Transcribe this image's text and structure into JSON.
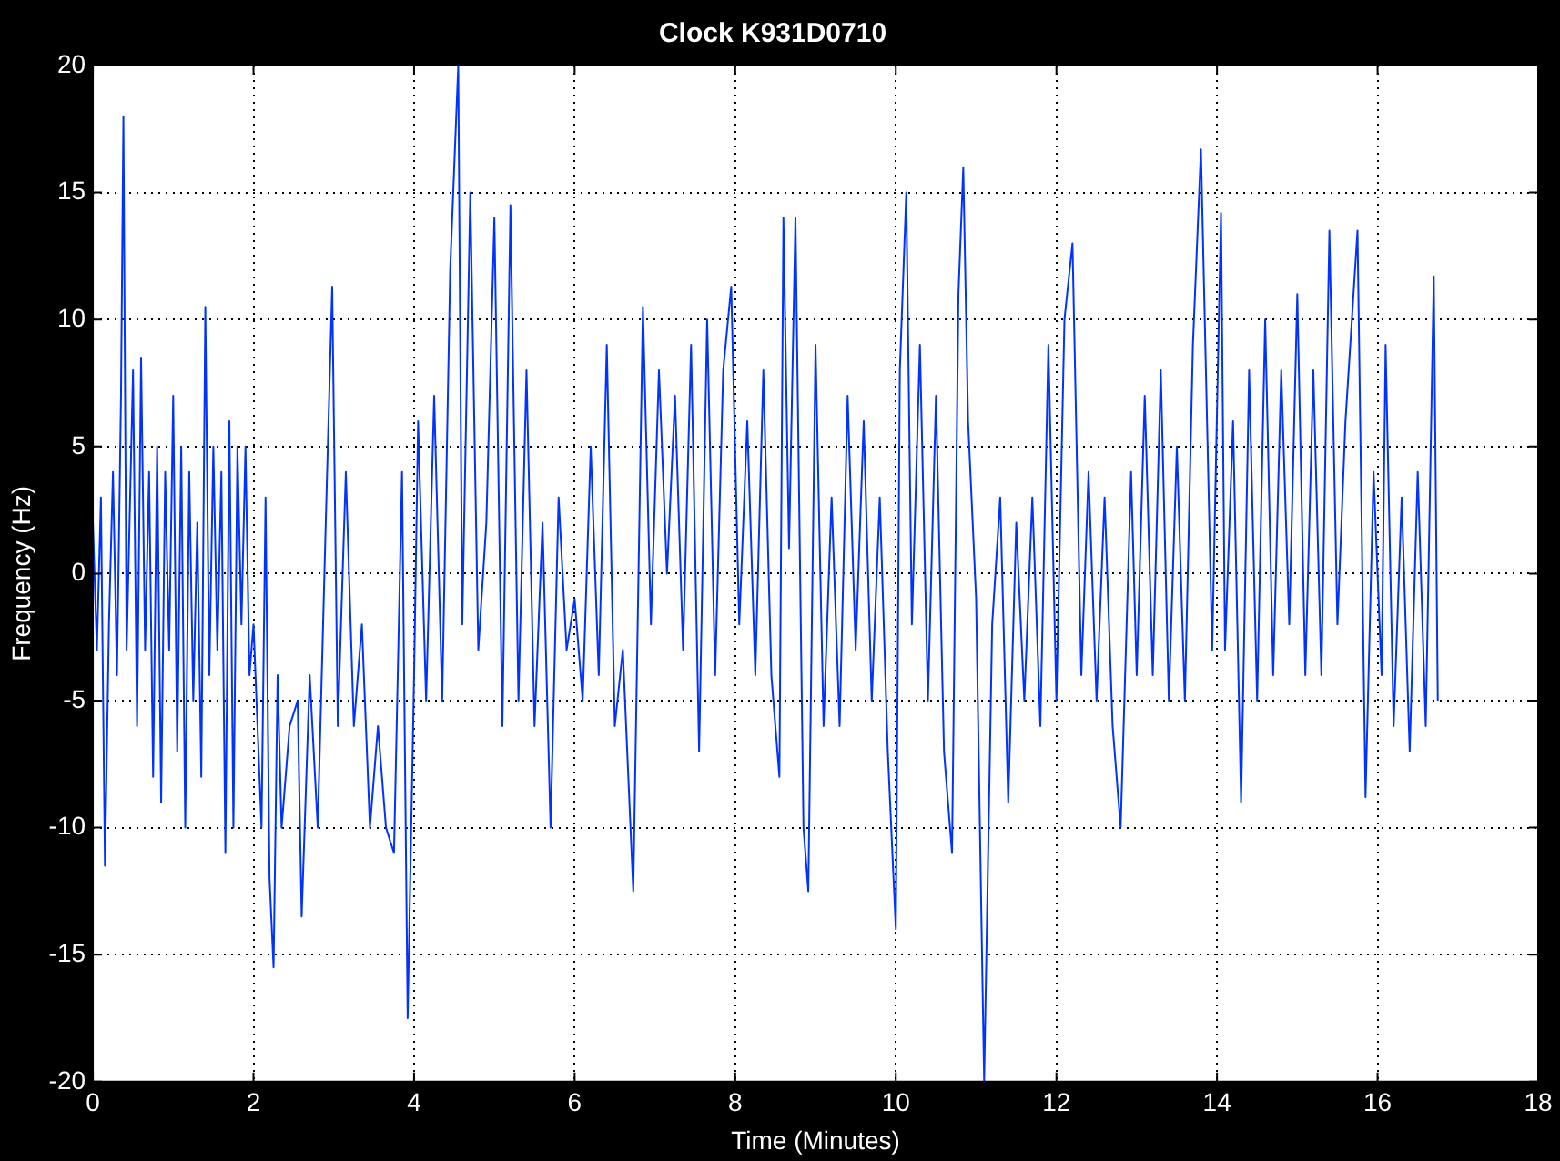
{
  "chart_data": {
    "type": "line",
    "title": "Clock K931D0710",
    "xlabel": "Time (Minutes)",
    "ylabel": "Frequency (Hz)",
    "xlim": [
      0,
      18
    ],
    "ylim": [
      -20,
      20
    ],
    "xticks": [
      0,
      2,
      4,
      6,
      8,
      10,
      12,
      14,
      16,
      18
    ],
    "yticks": [
      -20,
      -15,
      -10,
      -5,
      0,
      5,
      10,
      15,
      20
    ],
    "grid": true,
    "legend": false,
    "marker": "none",
    "line_style": "solid",
    "series": [
      {
        "color": "#0033ff",
        "x": [
          0,
          0.05,
          0.1,
          0.15,
          0.2,
          0.25,
          0.3,
          0.35,
          0.38,
          0.42,
          0.5,
          0.55,
          0.6,
          0.65,
          0.7,
          0.75,
          0.8,
          0.85,
          0.9,
          0.95,
          1.0,
          1.05,
          1.1,
          1.15,
          1.2,
          1.25,
          1.3,
          1.35,
          1.4,
          1.45,
          1.5,
          1.55,
          1.6,
          1.65,
          1.7,
          1.75,
          1.8,
          1.85,
          1.9,
          1.95,
          2.0,
          2.05,
          2.1,
          2.15,
          2.2,
          2.25,
          2.3,
          2.35,
          2.45,
          2.55,
          2.6,
          2.7,
          2.8,
          2.9,
          2.98,
          3.05,
          3.15,
          3.25,
          3.35,
          3.45,
          3.55,
          3.65,
          3.75,
          3.85,
          3.92,
          4.0,
          4.05,
          4.15,
          4.25,
          4.35,
          4.45,
          4.55,
          4.6,
          4.7,
          4.8,
          4.9,
          5.0,
          5.1,
          5.2,
          5.3,
          5.4,
          5.5,
          5.6,
          5.7,
          5.8,
          5.9,
          6.0,
          6.1,
          6.2,
          6.3,
          6.4,
          6.5,
          6.6,
          6.73,
          6.85,
          6.95,
          7.05,
          7.15,
          7.25,
          7.35,
          7.45,
          7.55,
          7.65,
          7.75,
          7.85,
          7.95,
          8.05,
          8.15,
          8.25,
          8.35,
          8.45,
          8.55,
          8.6,
          8.67,
          8.75,
          8.85,
          8.91,
          9.0,
          9.1,
          9.2,
          9.3,
          9.4,
          9.5,
          9.6,
          9.7,
          9.8,
          9.9,
          10.0,
          10.05,
          10.13,
          10.2,
          10.3,
          10.4,
          10.5,
          10.6,
          10.7,
          10.78,
          10.84,
          10.9,
          11.0,
          11.1,
          11.2,
          11.3,
          11.4,
          11.5,
          11.6,
          11.7,
          11.8,
          11.9,
          12.0,
          12.1,
          12.2,
          12.31,
          12.4,
          12.5,
          12.6,
          12.7,
          12.8,
          12.93,
          13.0,
          13.1,
          13.2,
          13.3,
          13.4,
          13.5,
          13.6,
          13.7,
          13.8,
          13.94,
          14.05,
          14.1,
          14.2,
          14.3,
          14.4,
          14.5,
          14.6,
          14.7,
          14.8,
          14.9,
          15.0,
          15.1,
          15.2,
          15.3,
          15.4,
          15.5,
          15.6,
          15.75,
          15.85,
          15.95,
          16.05,
          16.1,
          16.2,
          16.3,
          16.4,
          16.5,
          16.6,
          16.7,
          16.75
        ],
        "values": [
          2,
          -3,
          3,
          -11.5,
          -2,
          4,
          -4,
          7,
          18,
          -3,
          8,
          -6,
          8.5,
          -3,
          4,
          -8,
          5,
          -9,
          4,
          -3,
          7,
          -7,
          5,
          -10,
          4,
          -5,
          2,
          -8,
          10.5,
          -4,
          5,
          -3,
          4,
          -11,
          6,
          -10,
          5,
          -2,
          5,
          -4,
          -2,
          -6,
          -10,
          3,
          -12,
          -15.5,
          -4,
          -10,
          -6,
          -5,
          -13.5,
          -4,
          -10,
          2,
          11.3,
          -6,
          4,
          -6,
          -2,
          -10,
          -6,
          -10,
          -11,
          4,
          -17.5,
          -4,
          6,
          -5,
          7,
          -5,
          12,
          20,
          -2,
          15,
          -3,
          2,
          14,
          -6,
          14.5,
          -5,
          8,
          -6,
          2,
          -10,
          3,
          -3,
          -1,
          -5,
          5,
          -4,
          9,
          -6,
          -3,
          -12.5,
          10.5,
          -2,
          8,
          0,
          7,
          -3,
          9,
          -7,
          10,
          -4,
          8,
          11.3,
          -2,
          6,
          -4,
          8,
          -4,
          -8,
          14,
          1,
          14,
          -10,
          -12.5,
          9,
          -6,
          3,
          -6,
          7,
          -3,
          6,
          -5,
          3,
          -7,
          -14,
          8,
          15,
          -2,
          9,
          -5,
          7,
          -7,
          -11,
          11,
          16,
          6,
          -1,
          -20,
          -2,
          3,
          -9,
          2,
          -5,
          3,
          -6,
          9,
          -5,
          10,
          13,
          -4,
          4,
          -5,
          3,
          -6,
          -10,
          4,
          -4,
          7,
          -4,
          8,
          -5,
          5,
          -5,
          9,
          16.7,
          -3,
          14.2,
          -3,
          6,
          -9,
          8,
          -5,
          10,
          -4,
          8,
          -2,
          11,
          -4,
          8,
          -4,
          13.5,
          -2,
          6,
          13.5,
          -8.8,
          4,
          -4,
          9,
          -6,
          3,
          -7,
          4,
          -6,
          11.7,
          -5
        ]
      }
    ]
  }
}
